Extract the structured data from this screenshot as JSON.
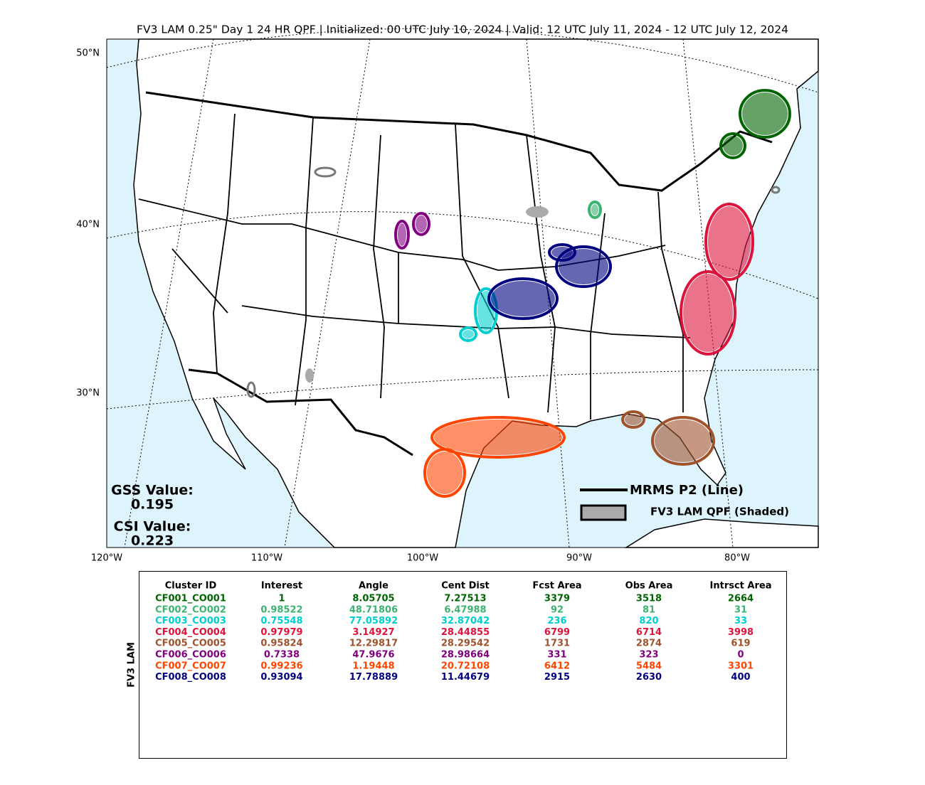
{
  "title": "FV3 LAM 0.25\" Day 1 24 HR QPF | Initialized: 00 UTC July 10, 2024 | Valid: 12 UTC July 11, 2024 - 12 UTC July 12, 2024",
  "map": {
    "lat_labels": [
      "50°N",
      "40°N",
      "30°N"
    ],
    "lon_labels": [
      "120°W",
      "110°W",
      "100°W",
      "90°W",
      "80°W"
    ],
    "legend": [
      "MRMS P2 (Line)",
      "FV3 LAM QPF (Shaded)"
    ],
    "scores": [
      {
        "label": "GSS Value:",
        "value": "0.195"
      },
      {
        "label": "CSI Value:",
        "value": "0.223"
      }
    ]
  },
  "table": {
    "side_label": "FV3 LAM",
    "headers": [
      "Cluster ID",
      "Interest",
      "Angle",
      "Cent Dist",
      "Fcst Area",
      "Obs Area",
      "Intrsct Area"
    ],
    "rows": [
      {
        "color": "#006400",
        "cells": [
          "CF001_CO001",
          "1",
          "8.05705",
          "7.27513",
          "3379",
          "3518",
          "2664"
        ]
      },
      {
        "color": "#3cb371",
        "cells": [
          "CF002_CO002",
          "0.98522",
          "48.71806",
          "6.47988",
          "92",
          "81",
          "31"
        ]
      },
      {
        "color": "#00ced1",
        "cells": [
          "CF003_CO003",
          "0.75548",
          "77.05892",
          "32.87042",
          "236",
          "820",
          "33"
        ]
      },
      {
        "color": "#dc143c",
        "cells": [
          "CF004_CO004",
          "0.97979",
          "3.14927",
          "28.44855",
          "6799",
          "6714",
          "3998"
        ]
      },
      {
        "color": "#a0522d",
        "cells": [
          "CF005_CO005",
          "0.95824",
          "12.29817",
          "28.29542",
          "1731",
          "2874",
          "619"
        ]
      },
      {
        "color": "#800080",
        "cells": [
          "CF006_CO006",
          "0.7338",
          "47.9676",
          "28.98664",
          "331",
          "323",
          "0"
        ]
      },
      {
        "color": "#ff4500",
        "cells": [
          "CF007_CO007",
          "0.99236",
          "1.19448",
          "20.72108",
          "6412",
          "5484",
          "3301"
        ]
      },
      {
        "color": "#000080",
        "cells": [
          "CF008_CO008",
          "0.93094",
          "17.78889",
          "11.44679",
          "2915",
          "2630",
          "400"
        ]
      }
    ]
  }
}
